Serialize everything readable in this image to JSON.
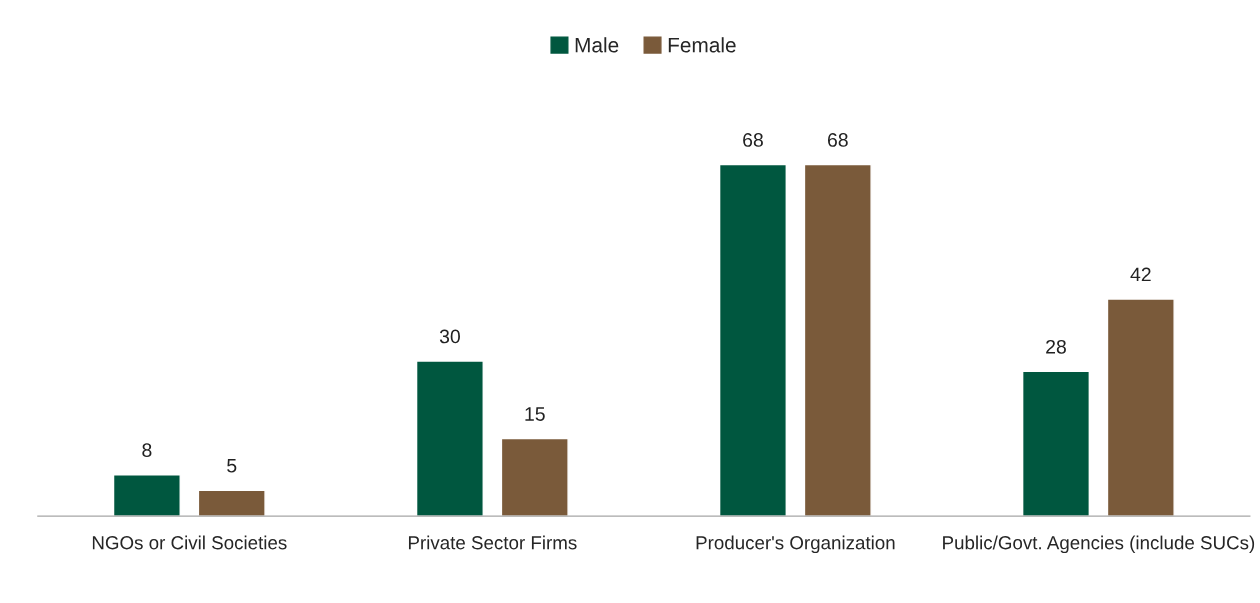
{
  "chart_data": {
    "type": "bar",
    "categories": [
      "NGOs or Civil Societies",
      "Private Sector Firms",
      "Producer's Organization",
      "Public/Govt. Agencies (include SUCs)"
    ],
    "series": [
      {
        "name": "Male",
        "color": "#00573f",
        "values": [
          8,
          30,
          68,
          28
        ]
      },
      {
        "name": "Female",
        "color": "#7a5a3a",
        "values": [
          5,
          15,
          68,
          42
        ]
      }
    ],
    "data_labels": true,
    "legend": "top",
    "grid": false,
    "tick_labels": "x"
  }
}
